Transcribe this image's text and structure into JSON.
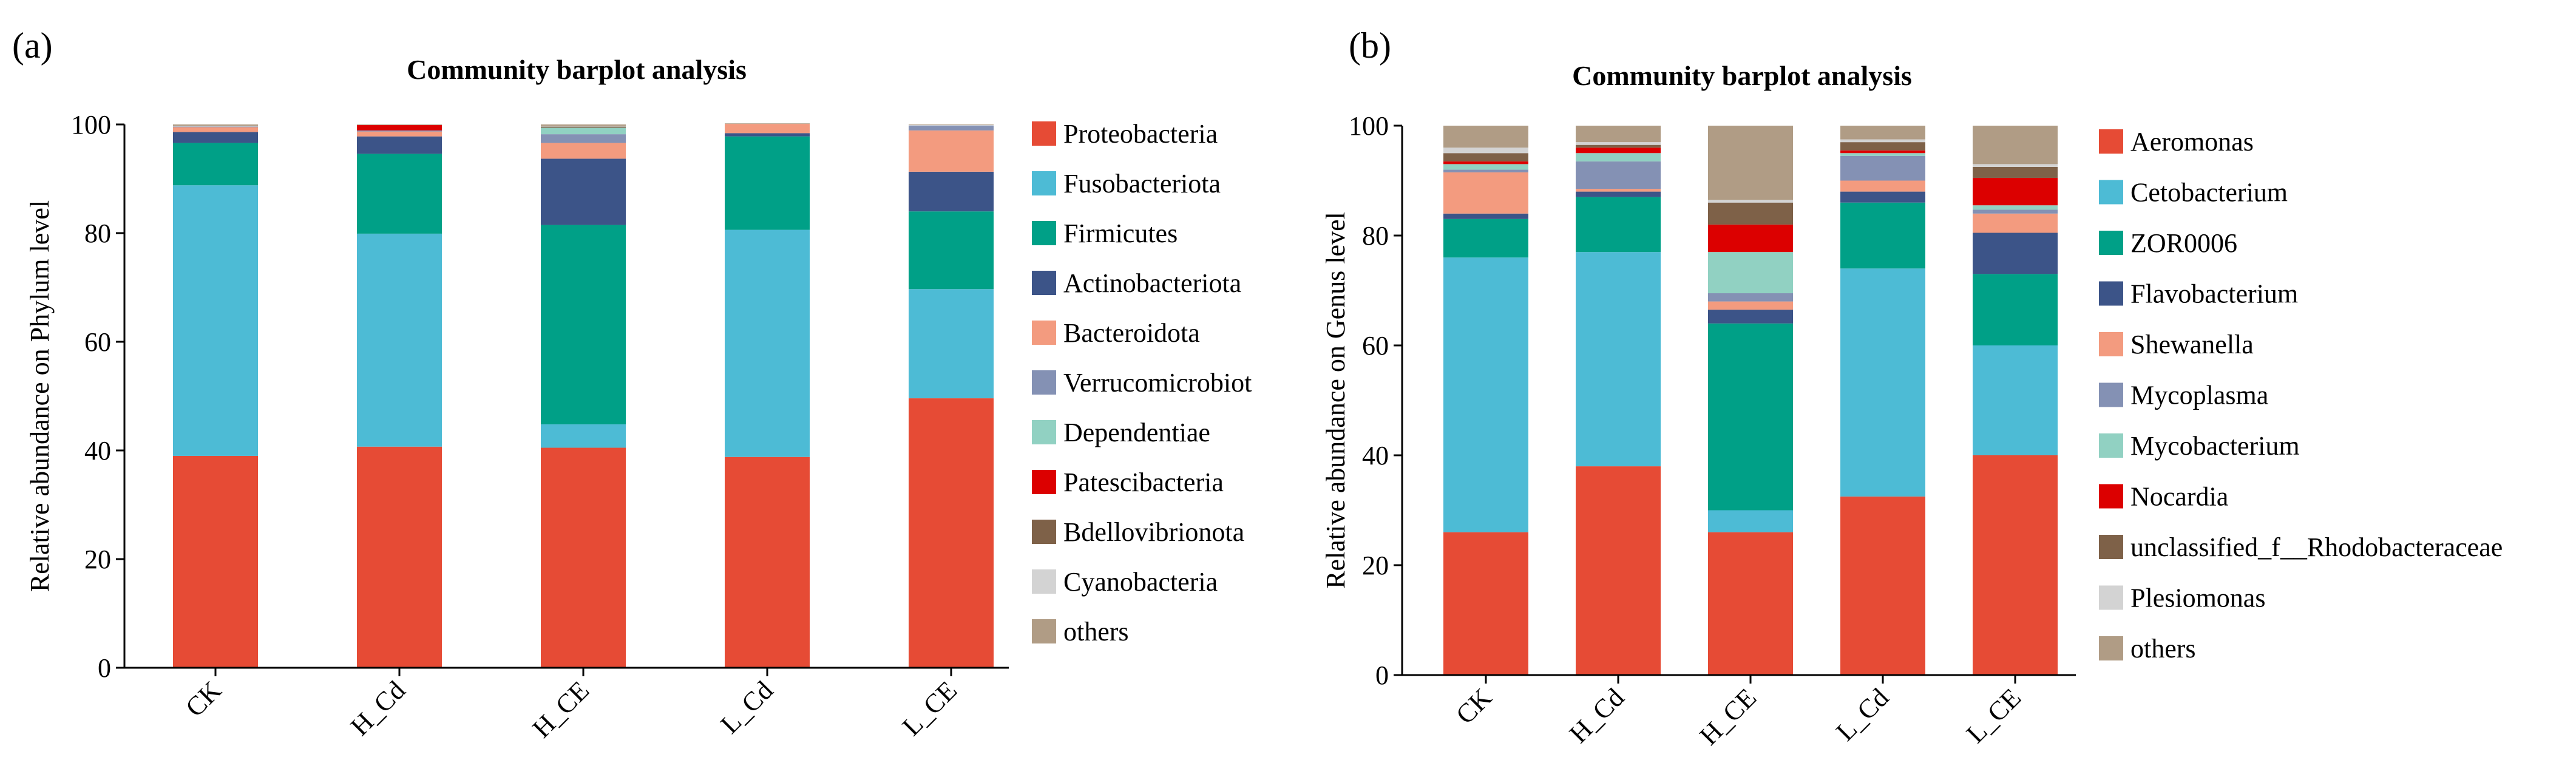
{
  "chart_data": [
    {
      "type": "bar",
      "stacked": true,
      "panel_label": "(a)",
      "title": "Community barplot analysis",
      "xlabel": "",
      "ylabel": "Relative abundance on Phylum level",
      "ylim": [
        0,
        100
      ],
      "yticks": [
        0,
        20,
        40,
        60,
        80,
        100
      ],
      "legend_position": "right",
      "categories": [
        "CK",
        "H_Cd",
        "H_CE",
        "L_Cd",
        "L_CE"
      ],
      "series": [
        {
          "name": "Proteobacteria",
          "color": "#E64B35",
          "values": [
            39.0,
            40.7,
            40.5,
            38.8,
            49.6
          ]
        },
        {
          "name": "Fusobacteriota",
          "color": "#4DBBD5",
          "values": [
            49.8,
            39.2,
            4.3,
            41.8,
            20.1
          ]
        },
        {
          "name": "Firmicutes",
          "color": "#00A087",
          "values": [
            7.8,
            14.7,
            36.7,
            17.2,
            14.3
          ]
        },
        {
          "name": "Actinobacteriota",
          "color": "#3C5488",
          "values": [
            2.0,
            3.2,
            12.2,
            0.6,
            7.3
          ]
        },
        {
          "name": "Bacteroidota",
          "color": "#F39B7F",
          "values": [
            0.9,
            0.9,
            2.9,
            1.7,
            7.6
          ]
        },
        {
          "name": "Verrucomicrobiot",
          "color": "#8491B4",
          "values": [
            0.1,
            0.2,
            1.6,
            0.0,
            0.9
          ]
        },
        {
          "name": "Dependentiae",
          "color": "#91D1C2",
          "values": [
            0.0,
            0.0,
            1.2,
            0.0,
            0.0
          ]
        },
        {
          "name": "Patescibacteria",
          "color": "#DC0000",
          "values": [
            0.0,
            1.0,
            0.0,
            0.0,
            0.0
          ]
        },
        {
          "name": "Bdellovibrionota",
          "color": "#7E6148",
          "values": [
            0.0,
            0.0,
            0.2,
            0.0,
            0.0
          ]
        },
        {
          "name": "Cyanobacteria",
          "color": "#D3D3D3",
          "values": [
            0.1,
            0.0,
            0.1,
            0.0,
            0.1
          ]
        },
        {
          "name": "others",
          "color": "#B09C85",
          "values": [
            0.3,
            0.1,
            0.3,
            0.1,
            0.1
          ]
        }
      ]
    },
    {
      "type": "bar",
      "stacked": true,
      "panel_label": "(b)",
      "title": "Community barplot analysis",
      "xlabel": "",
      "ylabel": "Relative abundance on Genus level",
      "ylim": [
        0,
        100
      ],
      "yticks": [
        0,
        20,
        40,
        60,
        80,
        100
      ],
      "legend_position": "right",
      "categories": [
        "CK",
        "H_Cd",
        "H_CE",
        "L_Cd",
        "L_CE"
      ],
      "series": [
        {
          "name": "Aeromonas",
          "color": "#E64B35",
          "values": [
            26.0,
            38.0,
            26.0,
            32.5,
            40.0
          ]
        },
        {
          "name": "Cetobacterium",
          "color": "#4DBBD5",
          "values": [
            50.0,
            39.0,
            4.0,
            41.5,
            20.0
          ]
        },
        {
          "name": "ZOR0006",
          "color": "#00A087",
          "values": [
            7.0,
            10.0,
            34.0,
            12.0,
            13.0
          ]
        },
        {
          "name": "Flavobacterium",
          "color": "#3C5488",
          "values": [
            1.0,
            1.0,
            2.5,
            2.0,
            7.5
          ]
        },
        {
          "name": "Shewanella",
          "color": "#F39B7F",
          "values": [
            7.5,
            0.5,
            1.5,
            2.0,
            3.5
          ]
        },
        {
          "name": "Mycoplasma",
          "color": "#8491B4",
          "values": [
            0.5,
            5.0,
            1.5,
            4.5,
            0.7
          ]
        },
        {
          "name": "Mycobacterium",
          "color": "#91D1C2",
          "values": [
            1.0,
            1.5,
            7.5,
            0.5,
            0.8
          ]
        },
        {
          "name": "Nocardia",
          "color": "#DC0000",
          "values": [
            0.5,
            1.0,
            5.0,
            0.5,
            5.0
          ]
        },
        {
          "name": "unclassified_f__Rhodobacteraceae",
          "color": "#7E6148",
          "values": [
            1.5,
            0.5,
            4.0,
            1.5,
            2.0
          ]
        },
        {
          "name": "Plesiomonas",
          "color": "#D3D3D3",
          "values": [
            1.0,
            0.5,
            0.5,
            0.5,
            0.5
          ]
        },
        {
          "name": "others",
          "color": "#B09C85",
          "values": [
            4.0,
            3.0,
            13.5,
            2.5,
            7.0
          ]
        }
      ]
    }
  ]
}
